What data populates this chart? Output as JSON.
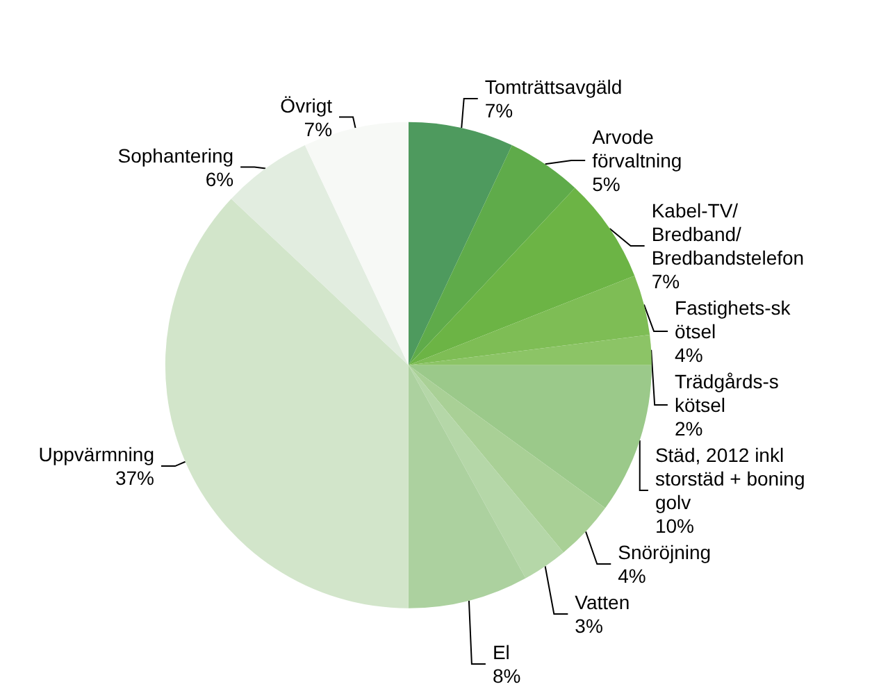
{
  "chart_data": {
    "type": "pie",
    "categories": [
      "Tomträttsavgäld",
      "Arvode förvaltning",
      "Kabel-TV/Bredband/Bredbandstelefon",
      "Fastighets-skötsel",
      "Trädgårds-skötsel",
      "Städ, 2012 inkl storstäd + boning golv",
      "Snöröjning",
      "Vatten",
      "El",
      "Uppvärmning",
      "Sophantering",
      "Övrigt"
    ],
    "values": [
      7,
      5,
      7,
      4,
      2,
      10,
      4,
      3,
      8,
      37,
      6,
      7
    ],
    "value_labels": [
      "7%",
      "5%",
      "7%",
      "4%",
      "2%",
      "10%",
      "4%",
      "3%",
      "8%",
      "37%",
      "6%",
      "7%"
    ],
    "colors": [
      "#4e9a5e",
      "#5fab4a",
      "#6cb445",
      "#7ebd55",
      "#8cc466",
      "#9bc98a",
      "#a9d096",
      "#b5d7a8",
      "#acd19f",
      "#d2e5ca",
      "#e2ede0",
      "#f7f9f6"
    ],
    "legend": false
  }
}
